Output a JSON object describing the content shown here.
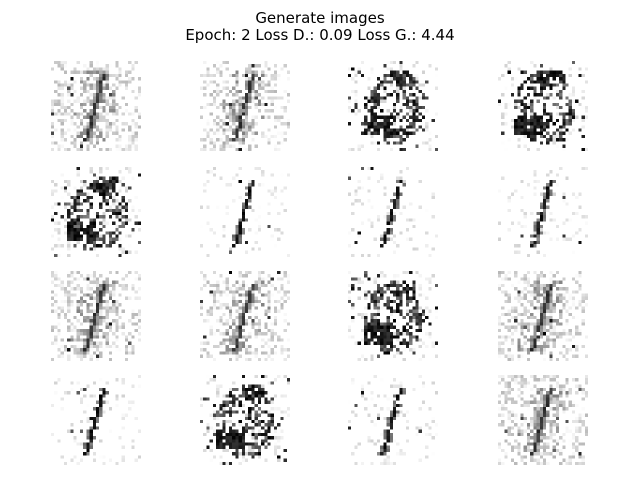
{
  "title": {
    "line1": "Generate images",
    "line2": "Epoch: 2 Loss D.: 0.09 Loss G.: 4.44"
  },
  "grid": {
    "rows": 4,
    "cols": 4,
    "colormap": "gray_r",
    "samples": [
      {
        "row": 0,
        "col": 0,
        "style": "faint-one"
      },
      {
        "row": 0,
        "col": 1,
        "style": "faint-one"
      },
      {
        "row": 0,
        "col": 2,
        "style": "noisy-blob"
      },
      {
        "row": 0,
        "col": 3,
        "style": "noisy-blob"
      },
      {
        "row": 1,
        "col": 0,
        "style": "noisy-blob"
      },
      {
        "row": 1,
        "col": 1,
        "style": "clean-one"
      },
      {
        "row": 1,
        "col": 2,
        "style": "clean-one"
      },
      {
        "row": 1,
        "col": 3,
        "style": "clean-one"
      },
      {
        "row": 2,
        "col": 0,
        "style": "faint-one"
      },
      {
        "row": 2,
        "col": 1,
        "style": "faint-one"
      },
      {
        "row": 2,
        "col": 2,
        "style": "noisy-blob"
      },
      {
        "row": 2,
        "col": 3,
        "style": "faint-one"
      },
      {
        "row": 3,
        "col": 0,
        "style": "clean-one"
      },
      {
        "row": 3,
        "col": 1,
        "style": "noisy-blob"
      },
      {
        "row": 3,
        "col": 2,
        "style": "clean-one"
      },
      {
        "row": 3,
        "col": 3,
        "style": "faint-one"
      }
    ]
  }
}
